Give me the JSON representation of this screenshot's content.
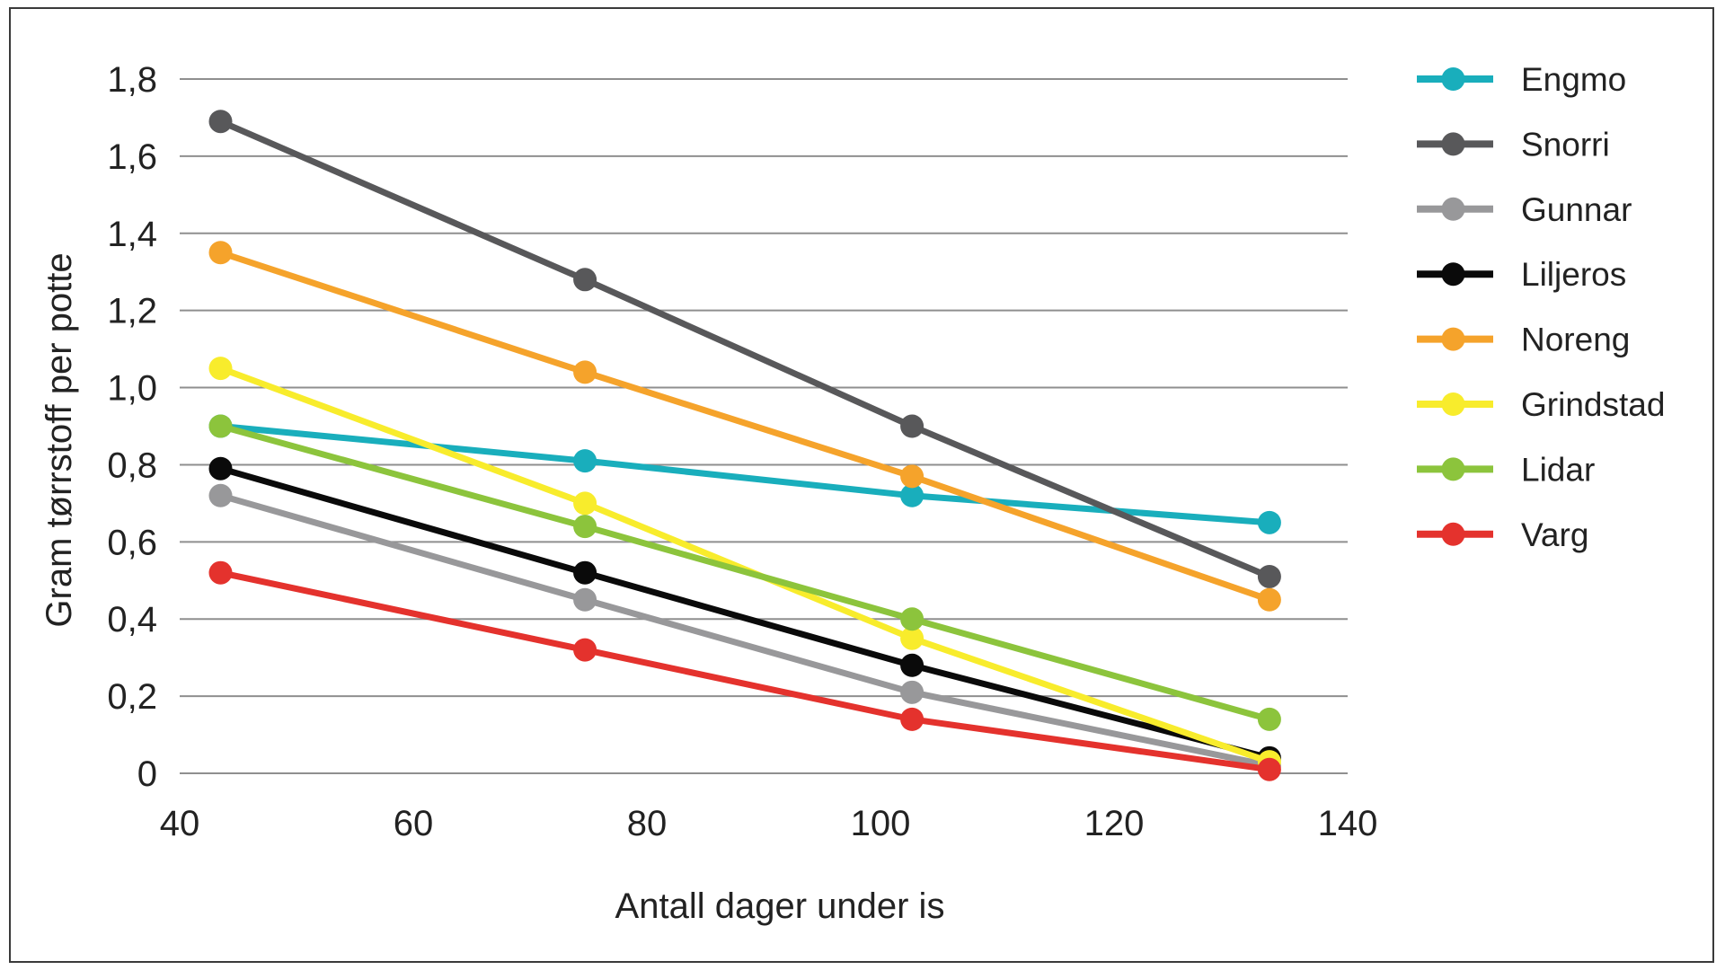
{
  "chart_data": {
    "type": "line",
    "title": "",
    "xlabel": "Antall dager under is",
    "ylabel": "Gram tørrstoff per potte",
    "xlim": [
      40,
      140
    ],
    "ylim": [
      0,
      1.8
    ],
    "xticks": [
      40,
      60,
      80,
      100,
      120,
      140
    ],
    "xtick_labels": [
      "40",
      "60",
      "80",
      "100",
      "120",
      "140"
    ],
    "yticks": [
      0,
      0.2,
      0.4,
      0.6,
      0.8,
      1.0,
      1.2,
      1.4,
      1.6,
      1.8
    ],
    "ytick_labels": [
      "0",
      "0,2",
      "0,4",
      "0,6",
      "0,8",
      "1,0",
      "1,2",
      "1,4",
      "1,6",
      "1,8"
    ],
    "grid": "horizontal",
    "legend_position": "right",
    "x": [
      43.5,
      74.7,
      102.7,
      133.3
    ],
    "series": [
      {
        "name": "Engmo",
        "color": "#19aebc",
        "values": [
          0.9,
          0.81,
          0.72,
          0.65
        ]
      },
      {
        "name": "Snorri",
        "color": "#58585a",
        "values": [
          1.69,
          1.28,
          0.9,
          0.51
        ]
      },
      {
        "name": "Gunnar",
        "color": "#98989a",
        "values": [
          0.72,
          0.45,
          0.21,
          0.02
        ]
      },
      {
        "name": "Liljeros",
        "color": "#0a0a0a",
        "values": [
          0.79,
          0.52,
          0.28,
          0.04
        ]
      },
      {
        "name": "Noreng",
        "color": "#f5a32b",
        "values": [
          1.35,
          1.04,
          0.77,
          0.45
        ]
      },
      {
        "name": "Grindstad",
        "color": "#f8ec2c",
        "values": [
          1.05,
          0.7,
          0.35,
          0.03
        ]
      },
      {
        "name": "Lidar",
        "color": "#8cc43c",
        "values": [
          0.9,
          0.64,
          0.4,
          0.14
        ]
      },
      {
        "name": "Varg",
        "color": "#e4322d",
        "values": [
          0.52,
          0.32,
          0.14,
          0.01
        ]
      }
    ]
  }
}
